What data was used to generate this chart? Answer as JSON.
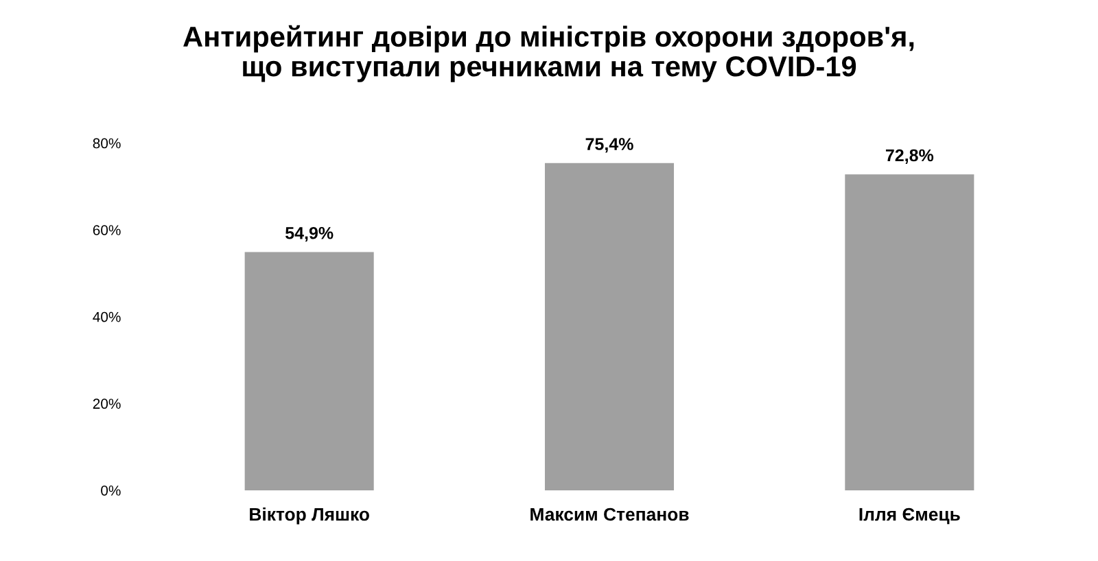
{
  "chart_data": {
    "type": "bar",
    "title": "Антирейтинг довіри до міністрів охорони здоров'я,\nщо виступали речниками на тему COVID-19",
    "categories": [
      "Віктор Ляшко",
      "Максим Степанов",
      "Ілля Ємець"
    ],
    "values": [
      54.9,
      75.4,
      72.8
    ],
    "color": "#a0a0a0",
    "value_labels": [
      "54,9%",
      "75,4%",
      "72,8%"
    ],
    "ylim": [
      0,
      80
    ],
    "yticks": [
      {
        "value": 0,
        "label": "0%"
      },
      {
        "value": 20,
        "label": "20%"
      },
      {
        "value": 40,
        "label": "40%"
      },
      {
        "value": 60,
        "label": "60%"
      },
      {
        "value": 80,
        "label": "80%"
      }
    ],
    "grid": false
  }
}
